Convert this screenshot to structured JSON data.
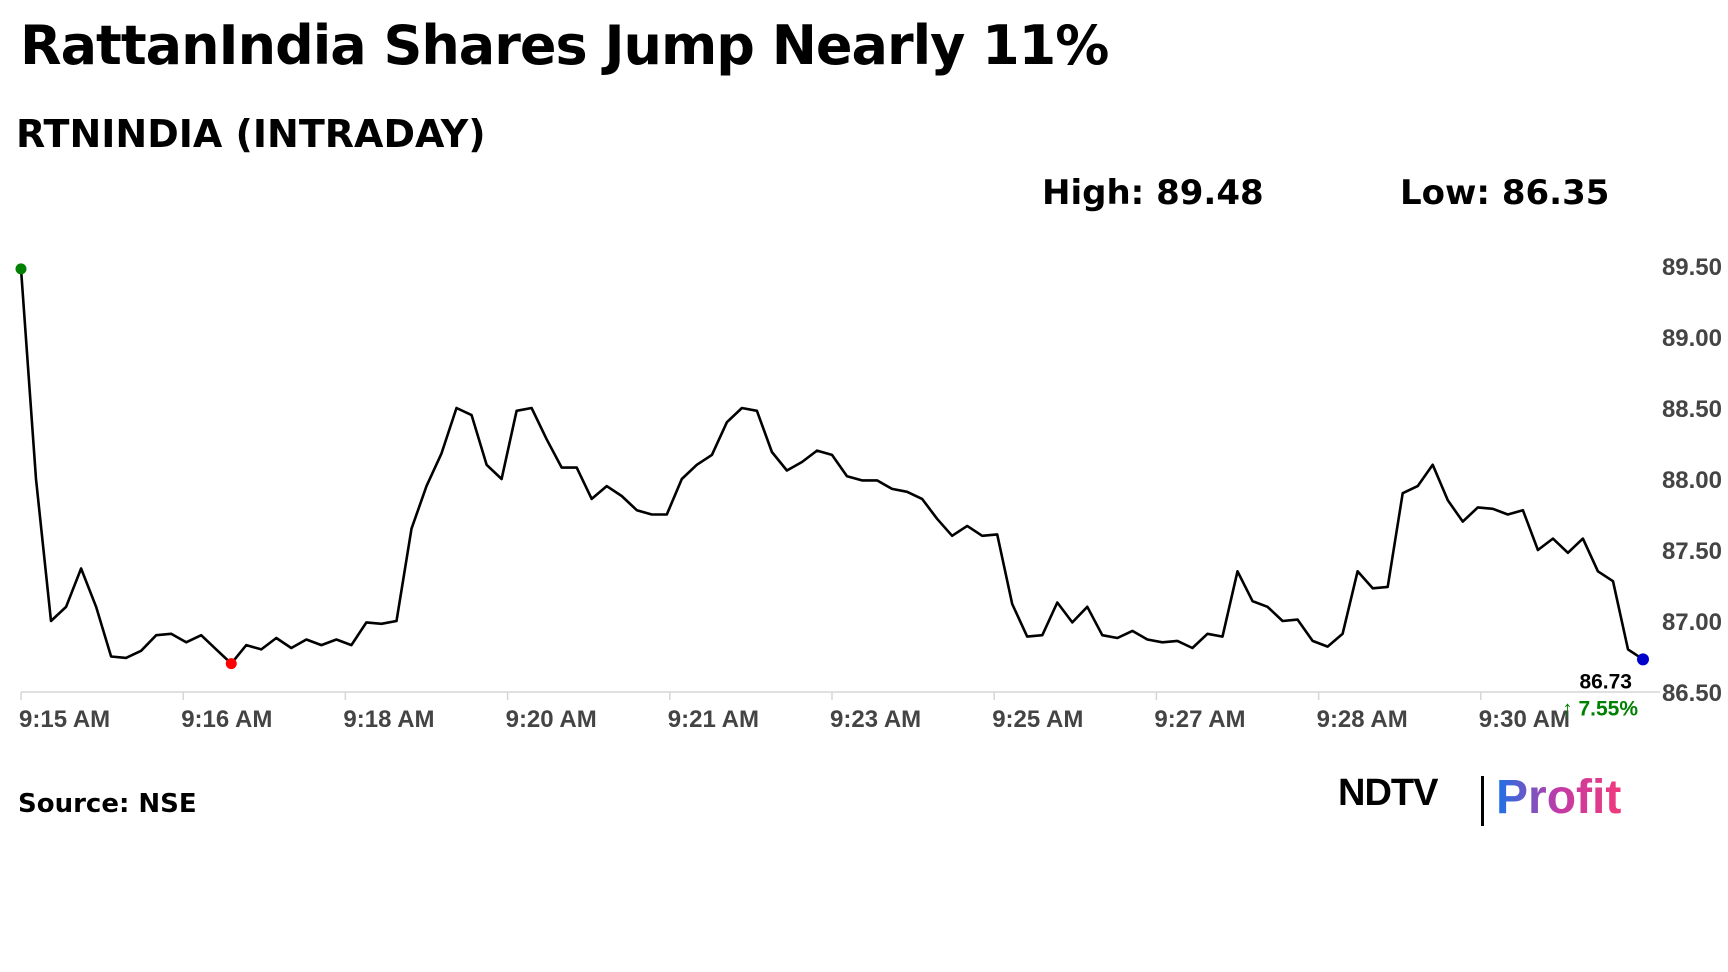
{
  "header": {
    "title": "RattanIndia Shares Jump Nearly 11%",
    "subtitle": "RTNINDIA (INTRADAY)",
    "high": "High: 89.48",
    "low": "Low: 86.35"
  },
  "footer": {
    "source": "Source: NSE",
    "logo_left": "NDTV",
    "logo_right": "Profit"
  },
  "colors": {
    "line": "#000000",
    "start_marker": "#008000",
    "low_marker": "#ff0000",
    "end_marker": "#0000cc",
    "change_text": "#008000",
    "logo_gradient": [
      "#1a73e8",
      "#c23aa6",
      "#ef3a7c"
    ]
  },
  "chart_data": {
    "type": "line",
    "title": "RTNINDIA (INTRADAY)",
    "xlabel": "",
    "ylabel": "",
    "ylim": [
      86.5,
      89.5
    ],
    "yticks": [
      "89.50",
      "89.00",
      "88.50",
      "88.00",
      "87.50",
      "87.00",
      "86.50"
    ],
    "xticks": [
      "9:15 AM",
      "9:16 AM",
      "9:18 AM",
      "9:20 AM",
      "9:21 AM",
      "9:23 AM",
      "9:25 AM",
      "9:27 AM",
      "9:28 AM",
      "9:30 AM"
    ],
    "grid": false,
    "last_value": "86.73",
    "change": "↑ 7.55%",
    "series": [
      {
        "values": [
          89.48,
          88.0,
          87.0,
          87.1,
          87.37,
          87.1,
          86.75,
          86.74,
          86.79,
          86.9,
          86.91,
          86.85,
          86.9,
          86.8,
          86.7,
          86.83,
          86.8,
          86.88,
          86.81,
          86.87,
          86.83,
          86.87,
          86.83,
          86.99,
          86.98,
          87.0,
          87.65,
          87.95,
          88.18,
          88.5,
          88.45,
          88.1,
          88.0,
          88.48,
          88.5,
          88.28,
          88.08,
          88.08,
          87.86,
          87.95,
          87.88,
          87.78,
          87.75,
          87.75,
          88.0,
          88.1,
          88.17,
          88.4,
          88.5,
          88.48,
          88.19,
          88.06,
          88.12,
          88.2,
          88.17,
          88.02,
          87.99,
          87.99,
          87.93,
          87.91,
          87.86,
          87.72,
          87.6,
          87.67,
          87.6,
          87.61,
          87.12,
          86.89,
          86.9,
          87.13,
          86.99,
          87.1,
          86.9,
          86.88,
          86.93,
          86.87,
          86.85,
          86.86,
          86.81,
          86.91,
          86.89,
          87.35,
          87.14,
          87.1,
          87.0,
          87.01,
          86.86,
          86.82,
          86.91,
          87.35,
          87.23,
          87.24,
          87.9,
          87.95,
          88.1,
          87.85,
          87.7,
          87.8,
          87.79,
          87.75,
          87.78,
          87.5,
          87.58,
          87.48,
          87.58,
          87.35,
          87.28,
          86.8,
          86.73
        ]
      }
    ]
  }
}
